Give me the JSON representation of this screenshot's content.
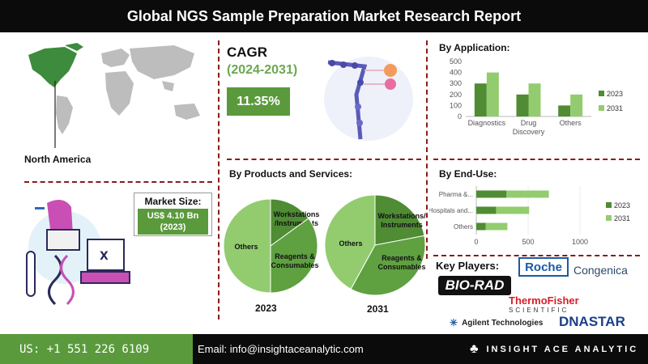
{
  "title": "Global NGS Sample Preparation Market Research Report",
  "region": {
    "label": "North America"
  },
  "cagr": {
    "title": "CAGR",
    "period": "(2024-2031)",
    "value": "11.35%"
  },
  "market_size": {
    "label": "Market Size:",
    "value_line1": "US$ 4.10 Bn",
    "value_line2": "(2023)"
  },
  "colors": {
    "dark_green": "#4f8c34",
    "light_green": "#93cc6f",
    "accent": "#5a9a3c",
    "separator": "#8b1a1a"
  },
  "chart_data": [
    {
      "type": "bar",
      "title": "By Application:",
      "categories": [
        "Diagnostics",
        "Drug Discovery",
        "Others"
      ],
      "category_display": [
        [
          "Diagnostics"
        ],
        [
          "Drug",
          "Discovery"
        ],
        [
          "Others"
        ]
      ],
      "series": [
        {
          "name": "2023",
          "values": [
            300,
            200,
            100
          ]
        },
        {
          "name": "2031",
          "values": [
            400,
            300,
            200
          ]
        }
      ],
      "ylim": [
        0,
        500
      ],
      "yticks": [
        "0",
        "100",
        "200",
        "300",
        "400",
        "500"
      ],
      "legend": "right"
    },
    {
      "type": "bar",
      "orientation": "horizontal",
      "title": "By  End-Use:",
      "categories": [
        "Pharma &...",
        "Hospitals and...",
        "Others"
      ],
      "series": [
        {
          "name": "2023",
          "values": [
            290,
            190,
            90
          ]
        },
        {
          "name": "2031",
          "values": [
            700,
            510,
            300
          ]
        }
      ],
      "xlim": [
        0,
        1000
      ],
      "xticks": [
        "0",
        "500",
        "1000"
      ],
      "legend": "right"
    },
    {
      "type": "pie",
      "title": "By Products and Services:",
      "year": "2023",
      "slices": [
        {
          "label": "Workstations /Instruments",
          "value": 15
        },
        {
          "label": "Reagents & Consumables",
          "value": 35
        },
        {
          "label": "Others",
          "value": 50
        }
      ]
    },
    {
      "type": "pie",
      "year": "2031",
      "slices": [
        {
          "label": "Workstations/ Instruments",
          "value": 22
        },
        {
          "label": "Reagents & Consumables",
          "value": 36
        },
        {
          "label": "Others",
          "value": 42
        }
      ]
    }
  ],
  "key_players": {
    "title": "Key Players:",
    "logos": [
      "BIO-RAD",
      "Roche",
      "Congenica",
      "ThermoFisher",
      "SCIENTIFIC",
      "Agilent Technologies",
      "DNASTAR"
    ]
  },
  "footer": {
    "phone": "US: +1 551 226 6109",
    "email": "Email: info@insightaceanalytic.com",
    "brand": "INSIGHT ACE ANALYTIC"
  }
}
